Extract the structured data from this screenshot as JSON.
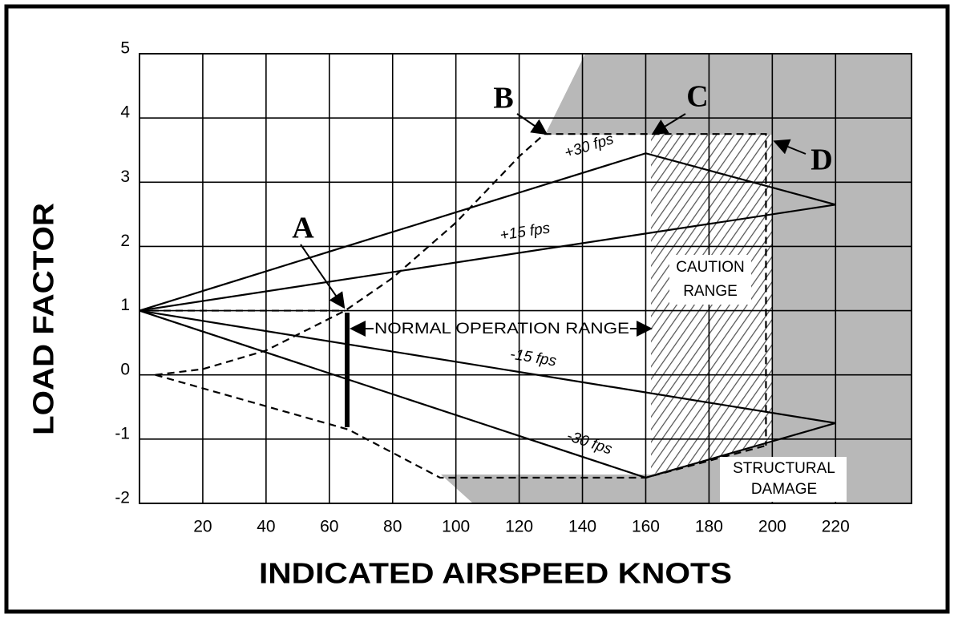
{
  "chart_data": {
    "type": "line",
    "xlabel": "INDICATED AIRSPEED KNOTS",
    "ylabel": "LOAD FACTOR",
    "xlim": [
      0,
      244
    ],
    "ylim": [
      -2,
      5
    ],
    "xticks": [
      20,
      40,
      60,
      80,
      100,
      120,
      140,
      160,
      180,
      200,
      220
    ],
    "yticks": [
      5,
      4,
      3,
      2,
      1,
      0,
      -1,
      -2
    ],
    "grid": true,
    "series": [
      {
        "name": "+30 fps",
        "color": "#000000",
        "x": [
          0,
          160,
          220
        ],
        "values": [
          1,
          3.45,
          2.65
        ]
      },
      {
        "name": "+15 fps",
        "color": "#000000",
        "x": [
          0,
          220
        ],
        "values": [
          1,
          2.65
        ]
      },
      {
        "name": "-15 fps",
        "color": "#000000",
        "x": [
          0,
          220
        ],
        "values": [
          1,
          -0.75
        ]
      },
      {
        "name": "-30 fps",
        "color": "#000000",
        "x": [
          0,
          160,
          220
        ],
        "values": [
          1,
          -1.6,
          -0.75
        ]
      }
    ],
    "boundaries": [
      {
        "color": "#000000",
        "dashed": true,
        "x": [
          5,
          20,
          40,
          65,
          80,
          100,
          120,
          128,
          160,
          198,
          198
        ],
        "values": [
          0,
          0.09,
          0.38,
          1,
          1.51,
          2.37,
          3.4,
          3.75,
          3.75,
          3.75,
          -1.1
        ]
      },
      {
        "color": "#000000",
        "dashed": true,
        "x": [
          5,
          66,
          95,
          160,
          198
        ],
        "values": [
          0,
          -0.85,
          -1.6,
          -1.6,
          -1.1
        ]
      },
      {
        "color": "#000000",
        "dashed": true,
        "x": [
          0,
          65
        ],
        "values": [
          1,
          1
        ]
      }
    ],
    "annotations": [
      "A",
      "B",
      "C",
      "D",
      "NORMAL OPERATION RANGE",
      "CAUTION",
      "RANGE",
      "STRUCTURAL",
      "DAMAGE"
    ]
  }
}
